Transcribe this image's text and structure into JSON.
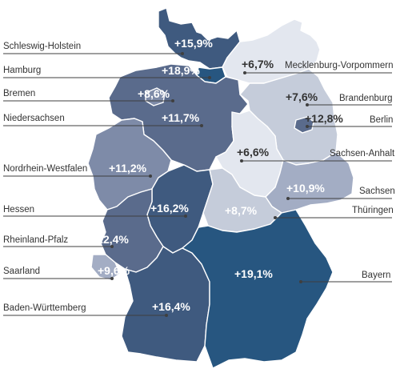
{
  "colors": {
    "level_1": "#e3e7ef",
    "level_2": "#c5ccda",
    "level_3": "#a3adc4",
    "level_4": "#7e8ba8",
    "level_5": "#5a6b8c",
    "level_6": "#3f5a7f",
    "level_7": "#275680",
    "leader": "#3f3f3f"
  },
  "states": [
    {
      "key": "sh",
      "name": "Schleswig-Holstein",
      "value": "+15,9%",
      "pct": 15.9,
      "fill": "level_6"
    },
    {
      "key": "hh",
      "name": "Hamburg",
      "value": "+18,9%",
      "pct": 18.9,
      "fill": "level_7"
    },
    {
      "key": "hb",
      "name": "Bremen",
      "value": "+8,6%",
      "pct": 8.6,
      "fill": "level_4"
    },
    {
      "key": "ni",
      "name": "Niedersachsen",
      "value": "+11,7%",
      "pct": 11.7,
      "fill": "level_5"
    },
    {
      "key": "nw",
      "name": "Nordrhein-Westfalen",
      "value": "+11,2%",
      "pct": 11.2,
      "fill": "level_4"
    },
    {
      "key": "he",
      "name": "Hessen",
      "value": "+16,2%",
      "pct": 16.2,
      "fill": "level_6"
    },
    {
      "key": "rp",
      "name": "Rheinland-Pfalz",
      "value": "+12,4%",
      "pct": 12.4,
      "fill": "level_5"
    },
    {
      "key": "sl",
      "name": "Saarland",
      "value": "+9,6%",
      "pct": 9.6,
      "fill": "level_3"
    },
    {
      "key": "bw",
      "name": "Baden-Württemberg",
      "value": "+16,4%",
      "pct": 16.4,
      "fill": "level_6"
    },
    {
      "key": "mv",
      "name": "Mecklenburg-Vorpommern",
      "value": "+6,7%",
      "pct": 6.7,
      "fill": "level_1"
    },
    {
      "key": "bb",
      "name": "Brandenburg",
      "value": "+7,6%",
      "pct": 7.6,
      "fill": "level_2"
    },
    {
      "key": "be",
      "name": "Berlin",
      "value": "+12,8%",
      "pct": 12.8,
      "fill": "level_5"
    },
    {
      "key": "st",
      "name": "Sachsen-Anhalt",
      "value": "+6,6%",
      "pct": 6.6,
      "fill": "level_1"
    },
    {
      "key": "sn",
      "name": "Sachsen",
      "value": "+10,9%",
      "pct": 10.9,
      "fill": "level_3"
    },
    {
      "key": "th",
      "name": "Thüringen",
      "value": "+8,7%",
      "pct": 8.7,
      "fill": "level_2"
    },
    {
      "key": "by",
      "name": "Bayern",
      "value": "+19,1%",
      "pct": 19.1,
      "fill": "level_7"
    }
  ]
}
